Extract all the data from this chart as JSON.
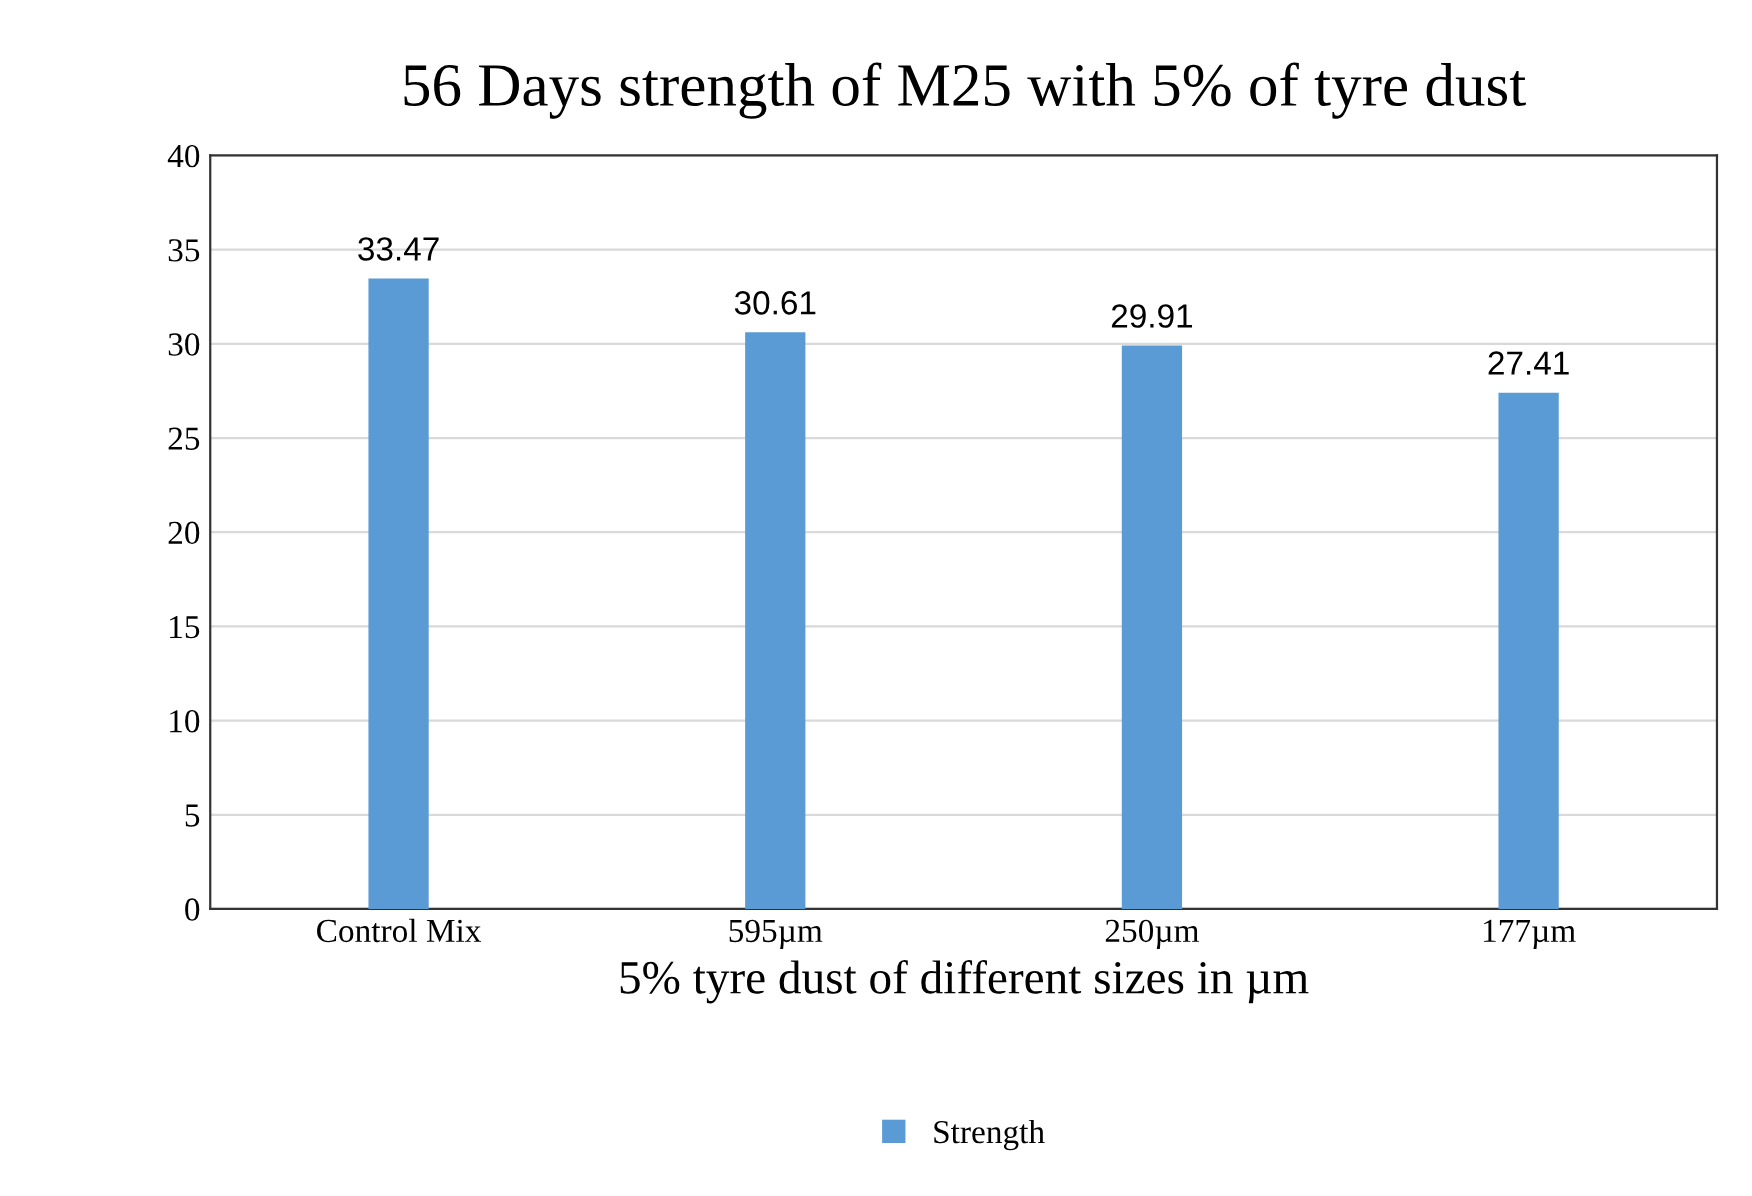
{
  "chart_data": {
    "type": "bar",
    "title": "56 Days strength of M25 with 5% of tyre dust",
    "xlabel": "5% tyre dust of different sizes in µm",
    "categories": [
      "Control Mix",
      "595µm",
      "250µm",
      "177µm"
    ],
    "series": [
      {
        "name": "Strength",
        "color": "#5b9bd5",
        "values": [
          33.47,
          30.61,
          29.91,
          27.41
        ]
      }
    ],
    "ylim": [
      0,
      40
    ],
    "yticks": [
      0,
      5,
      10,
      15,
      20,
      25,
      30,
      35,
      40
    ],
    "grid": "y",
    "legend": "bottom",
    "data_labels": true
  }
}
